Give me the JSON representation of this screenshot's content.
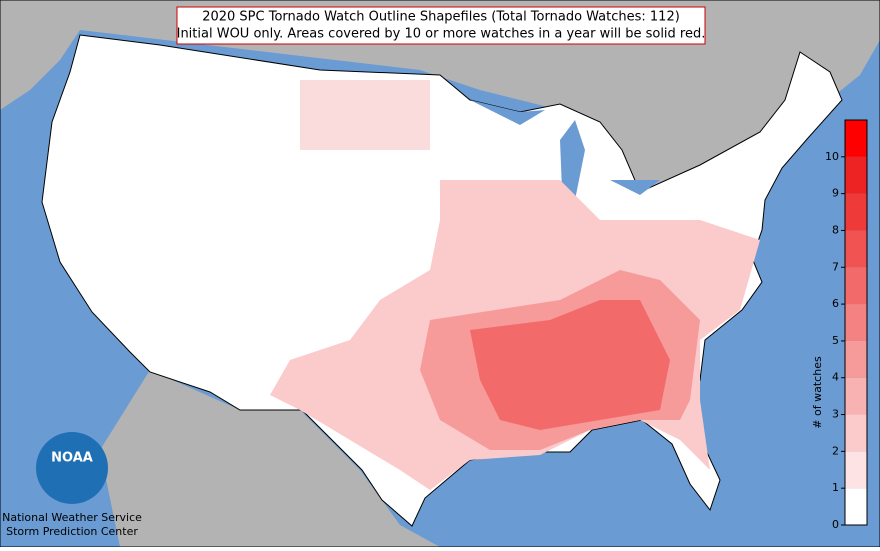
{
  "title": [
    "2020 SPC Tornado Watch Outline Shapefiles (Total Tornado Watches: 112)",
    "Initial WOU only. Areas covered by 10 or more watches in a year will be solid red."
  ],
  "credit": [
    "National Weather Service",
    "Storm Prediction Center"
  ],
  "colorbar": {
    "label": "# of watches",
    "lim": [
      0,
      11
    ],
    "ticks": [
      0,
      1,
      2,
      3,
      4,
      5,
      6,
      7,
      8,
      9,
      10
    ],
    "colors": [
      "#ffffff",
      "#fde3e3",
      "#fbcaca",
      "#f9b2b2",
      "#f79a9a",
      "#f58282",
      "#f36a6a",
      "#f15252",
      "#ef3a3a",
      "#ed2222",
      "#ff0000"
    ]
  }
}
